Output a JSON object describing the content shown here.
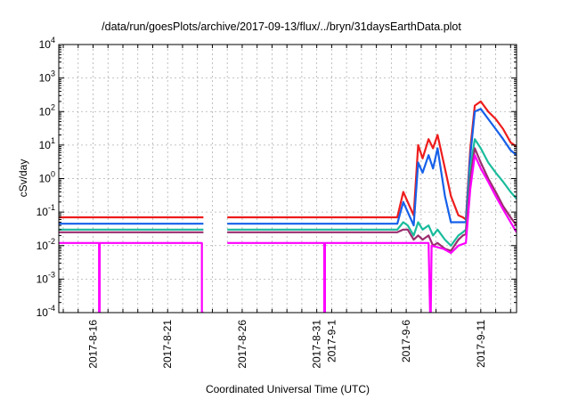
{
  "chart_data": {
    "type": "line",
    "title": "/data/run/goesPlots/archive/2017-09-13/flux/../bryn/31daysEarthData.plot",
    "xlabel": "Coordinated Universal Time (UTC)",
    "ylabel": "cSv/day",
    "yscale": "log",
    "ylim": [
      0.0001,
      10000
    ],
    "xlim_days_after_2017_08_13": [
      0.7,
      31.4
    ],
    "grid": true,
    "y_ticks": [
      {
        "mantissa": "10",
        "exp": "-4",
        "value": 0.0001
      },
      {
        "mantissa": "10",
        "exp": "-3",
        "value": 0.001
      },
      {
        "mantissa": "10",
        "exp": "-2",
        "value": 0.01
      },
      {
        "mantissa": "10",
        "exp": "-1",
        "value": 0.1
      },
      {
        "mantissa": "10",
        "exp": "0",
        "value": 1
      },
      {
        "mantissa": "10",
        "exp": "1",
        "value": 10
      },
      {
        "mantissa": "10",
        "exp": "2",
        "value": 100
      },
      {
        "mantissa": "10",
        "exp": "3",
        "value": 1000
      },
      {
        "mantissa": "10",
        "exp": "4",
        "value": 10000
      }
    ],
    "x_ticks": [
      {
        "label": "2017-8-16",
        "day": 3
      },
      {
        "label": "2017-8-21",
        "day": 8
      },
      {
        "label": "2017-8-26",
        "day": 13
      },
      {
        "label": "2017-8-31",
        "day": 18
      },
      {
        "label": "2017-9-1",
        "day": 19
      },
      {
        "label": "2017-9-6",
        "day": 24
      },
      {
        "label": "2017-9-11",
        "day": 29
      }
    ],
    "series": [
      {
        "color": "#ee1c1c",
        "x": [
          0.7,
          5,
          10.4,
          10.4,
          12.0,
          12.0,
          18,
          23.4,
          23.8,
          24.1,
          24.5,
          24.8,
          25.1,
          25.5,
          25.8,
          26.1,
          26.6,
          27,
          27.5,
          27.8,
          28.0,
          28.3,
          28.6,
          29,
          29.5,
          30,
          30.5,
          31,
          31.4
        ],
        "y": [
          0.07,
          0.07,
          0.07,
          null,
          null,
          0.07,
          0.07,
          0.07,
          0.4,
          0.2,
          0.08,
          10,
          4,
          15,
          8,
          20,
          2.0,
          0.3,
          0.08,
          0.07,
          0.06,
          8,
          150,
          200,
          100,
          60,
          30,
          12,
          9
        ]
      },
      {
        "color": "#1560ea",
        "x": [
          0.7,
          5,
          10.4,
          10.4,
          12.0,
          12.0,
          18,
          23.4,
          23.8,
          24.1,
          24.5,
          24.8,
          25.1,
          25.5,
          25.8,
          26.1,
          26.6,
          27,
          27.5,
          27.8,
          28.0,
          28.3,
          28.6,
          29,
          29.5,
          30,
          30.5,
          31,
          31.4
        ],
        "y": [
          0.045,
          0.045,
          0.045,
          null,
          null,
          0.045,
          0.045,
          0.045,
          0.2,
          0.1,
          0.04,
          3,
          1.5,
          5,
          2,
          8,
          0.3,
          0.05,
          0.05,
          0.05,
          0.05,
          5,
          100,
          120,
          60,
          30,
          15,
          7,
          5
        ]
      },
      {
        "color": "#1abc9c",
        "x": [
          0.7,
          5,
          10.4,
          10.4,
          12.0,
          12.0,
          18,
          23.4,
          23.8,
          24.1,
          24.5,
          24.8,
          25.1,
          25.5,
          25.8,
          26.1,
          26.6,
          27,
          27.5,
          27.8,
          28.0,
          28.3,
          28.6,
          29,
          29.5,
          30,
          30.5,
          31,
          31.4
        ],
        "y": [
          0.03,
          0.03,
          0.03,
          null,
          null,
          0.03,
          0.03,
          0.03,
          0.05,
          0.04,
          0.02,
          0.05,
          0.03,
          0.04,
          0.02,
          0.03,
          0.015,
          0.01,
          0.02,
          0.025,
          0.03,
          2,
          15,
          8,
          3,
          1.5,
          0.8,
          0.4,
          0.25
        ]
      },
      {
        "color": "#9b2d6e",
        "x": [
          0.7,
          5,
          10.4,
          10.4,
          12.0,
          12.0,
          18,
          23.4,
          23.8,
          24.1,
          24.5,
          24.8,
          25.1,
          25.5,
          25.8,
          26.1,
          26.6,
          27,
          27.5,
          27.8,
          28.0,
          28.3,
          28.6,
          29,
          29.5,
          30,
          30.5,
          31,
          31.4
        ],
        "y": [
          0.025,
          0.025,
          0.025,
          null,
          null,
          0.025,
          0.025,
          0.025,
          0.03,
          0.03,
          0.015,
          0.02,
          0.015,
          0.02,
          0.01,
          0.012,
          0.008,
          0.007,
          0.015,
          0.02,
          0.022,
          1,
          8,
          3,
          1,
          0.4,
          0.15,
          0.07,
          0.04
        ]
      },
      {
        "color": "#ff00ff",
        "x": [
          0.7,
          3.4,
          3.4,
          3.45,
          3.45,
          10.3,
          10.3,
          10.4,
          10.4,
          12.0,
          12.0,
          18.5,
          18.5,
          18.55,
          18.55,
          23.5,
          24.5,
          25.5,
          25.6,
          25.65,
          25.7,
          26.5,
          27,
          27.5,
          28.0,
          28.3,
          28.6,
          29,
          29.5,
          30,
          30.5,
          31,
          31.4
        ],
        "y": [
          0.012,
          0.012,
          0.0001,
          0.0001,
          0.012,
          0.012,
          0.0001,
          0.0001,
          null,
          null,
          0.012,
          0.012,
          0.0001,
          0.0001,
          0.012,
          0.012,
          0.012,
          0.012,
          0.0001,
          0.0001,
          0.01,
          0.008,
          0.006,
          0.01,
          0.012,
          0.5,
          5,
          2,
          0.8,
          0.3,
          0.12,
          0.05,
          0.025
        ]
      }
    ]
  }
}
